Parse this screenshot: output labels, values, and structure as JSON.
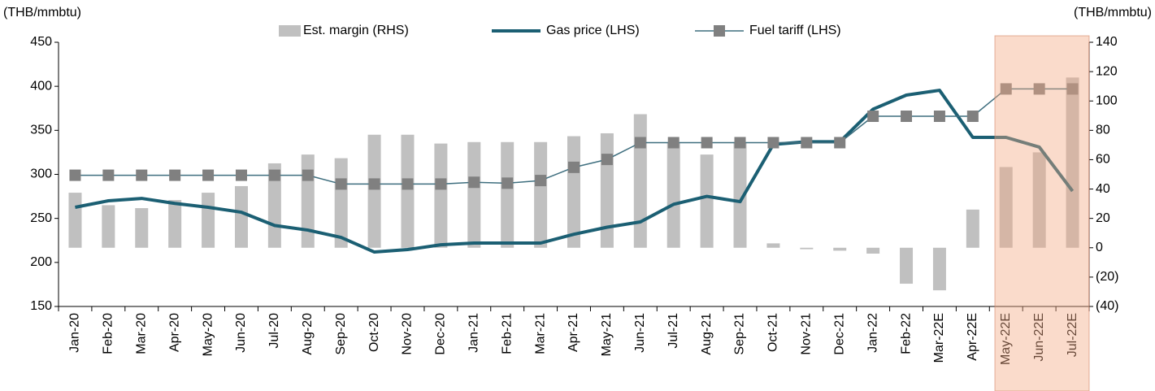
{
  "chart_data": {
    "type": "bar_line_combo",
    "y_label": "(THB/mmbtu)",
    "y2_label": "(THB/mmbtu)",
    "categories": [
      "Jan-20",
      "Feb-20",
      "Mar-20",
      "Apr-20",
      "May-20",
      "Jun-20",
      "Jul-20",
      "Aug-20",
      "Sep-20",
      "Oct-20",
      "Nov-20",
      "Dec-20",
      "Jan-21",
      "Feb-21",
      "Mar-21",
      "Apr-21",
      "May-21",
      "Jun-21",
      "Jul-21",
      "Aug-21",
      "Sep-21",
      "Oct-21",
      "Nov-21",
      "Dec-21",
      "Jan-22",
      "Feb-22",
      "Mar-22E",
      "Apr-22E",
      "May-22E",
      "Jun-22E",
      "Jul-22E"
    ],
    "series": [
      {
        "name": "Est. margin (RHS)",
        "type": "bar",
        "axis": "y2",
        "color": "#c0c0c0",
        "values": [
          37.5,
          29,
          27,
          32.5,
          37.5,
          42,
          57.5,
          63.5,
          61,
          77,
          77,
          71,
          72,
          72,
          72,
          76,
          78,
          91,
          72,
          63.5,
          72,
          3,
          -1,
          -2,
          -4,
          -24.5,
          -29,
          26,
          55,
          65,
          116
        ]
      },
      {
        "name": "Gas price (LHS)",
        "type": "line",
        "axis": "y",
        "color": "#1b5f73",
        "values": [
          262.6,
          270,
          272.7,
          267,
          262.6,
          257,
          242,
          236.7,
          228.4,
          211.8,
          214.6,
          220,
          222,
          222,
          222,
          232,
          240,
          246,
          266,
          275,
          269,
          334,
          337,
          337,
          374,
          390,
          395.5,
          342,
          342,
          331,
          281
        ]
      },
      {
        "name": "Fuel tariff (LHS)",
        "type": "line",
        "axis": "y",
        "color": "#3f6f7f",
        "marker_color": "#808080",
        "values": [
          299,
          299,
          299,
          299,
          299,
          299,
          299,
          299,
          289,
          289,
          289,
          289,
          291,
          290,
          293,
          308,
          317,
          336,
          336,
          336,
          336,
          336,
          336,
          336,
          366,
          366,
          366,
          366,
          397,
          397,
          397
        ]
      }
    ],
    "ylim": [
      150,
      450
    ],
    "yticks": [
      150,
      200,
      250,
      300,
      350,
      400,
      450
    ],
    "y2lim": [
      -40,
      140
    ],
    "y2ticks": [
      {
        "value": -40,
        "label": "(40)"
      },
      {
        "value": -20,
        "label": "(20)"
      },
      0,
      20,
      40,
      60,
      80,
      100,
      120,
      140
    ]
  }
}
